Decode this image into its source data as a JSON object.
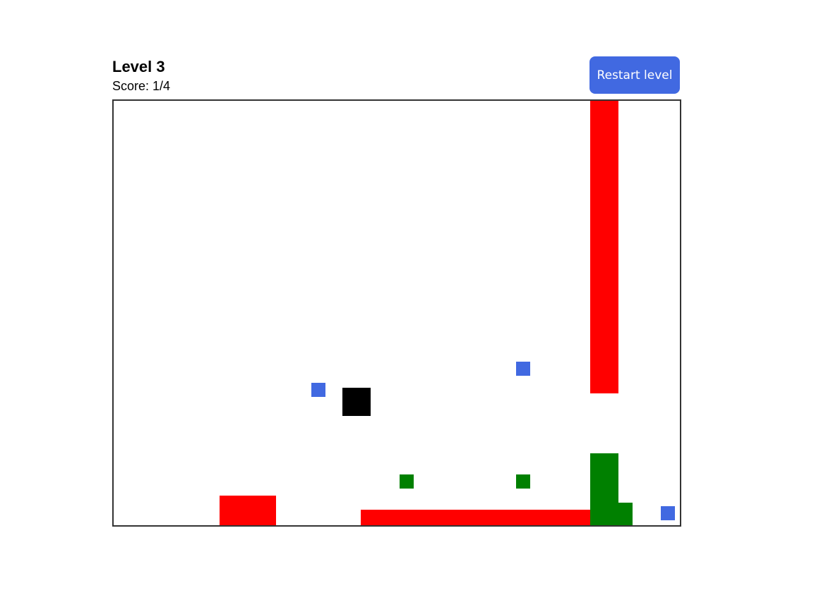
{
  "header": {
    "level_label": "Level 3",
    "score_label": "Score: 1/4",
    "restart_label": "Restart level"
  },
  "colors": {
    "hazard": "#ff0000",
    "goal": "#008000",
    "collectible": "#4169e1",
    "player": "#000000",
    "button": "#4169e1",
    "board_border": "#333333"
  }
}
